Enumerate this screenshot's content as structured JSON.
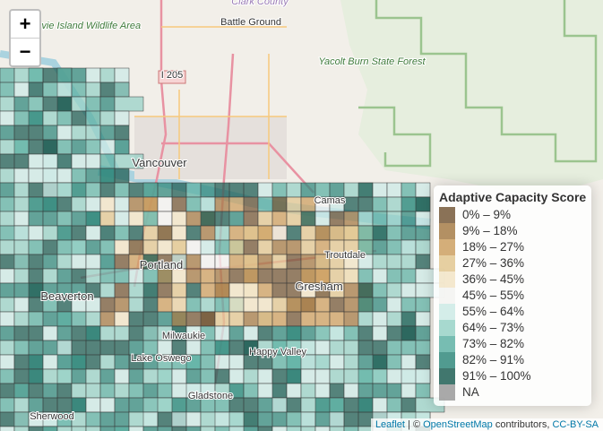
{
  "zoom": {
    "in": "+",
    "out": "−"
  },
  "places": [
    {
      "label": "Clark County",
      "style": "admin"
    },
    {
      "label": "Battle Ground",
      "style": "city"
    },
    {
      "label": "Sauvie Island Wildlife Area",
      "style": "park"
    },
    {
      "label": "Yacolt Burn State Forest",
      "style": "park"
    },
    {
      "label": "I 205",
      "style": "shield"
    },
    {
      "label": "Vancouver",
      "style": "bigcity"
    },
    {
      "label": "Camas",
      "style": "city"
    },
    {
      "label": "Portland",
      "style": "bigcity"
    },
    {
      "label": "Troutdale",
      "style": "city"
    },
    {
      "label": "Gresham",
      "style": "bigcity"
    },
    {
      "label": "Beaverton",
      "style": "bigcity"
    },
    {
      "label": "Milwaukie",
      "style": "city"
    },
    {
      "label": "Happy Valley",
      "style": "city"
    },
    {
      "label": "Lake Oswego",
      "style": "city"
    },
    {
      "label": "Gladstone",
      "style": "city"
    },
    {
      "label": "Sherwood",
      "style": "city"
    }
  ],
  "legend": {
    "title": "Adaptive Capacity Score",
    "items": [
      {
        "label": "0% – 9%",
        "color": "#76593a"
      },
      {
        "label": "9% – 18%",
        "color": "#a67c48"
      },
      {
        "label": "18% – 27%",
        "color": "#cda062"
      },
      {
        "label": "27% – 36%",
        "color": "#e2c791"
      },
      {
        "label": "36% – 45%",
        "color": "#f2e4c6"
      },
      {
        "label": "45% – 55%",
        "color": "#f3f3f1"
      },
      {
        "label": "55% – 64%",
        "color": "#cceae5"
      },
      {
        "label": "64% – 73%",
        "color": "#98d2c7"
      },
      {
        "label": "73% – 82%",
        "color": "#5fb2a4"
      },
      {
        "label": "82% – 91%",
        "color": "#338a7d"
      },
      {
        "label": "91% – 100%",
        "color": "#205f55"
      },
      {
        "label": "NA",
        "color": "#9a9a9a"
      }
    ]
  },
  "attribution": {
    "leaflet": "Leaflet",
    "sep": "| ©",
    "osm": "OpenStreetMap",
    "mid": "contributors,",
    "license": "CC-BY-SA"
  }
}
